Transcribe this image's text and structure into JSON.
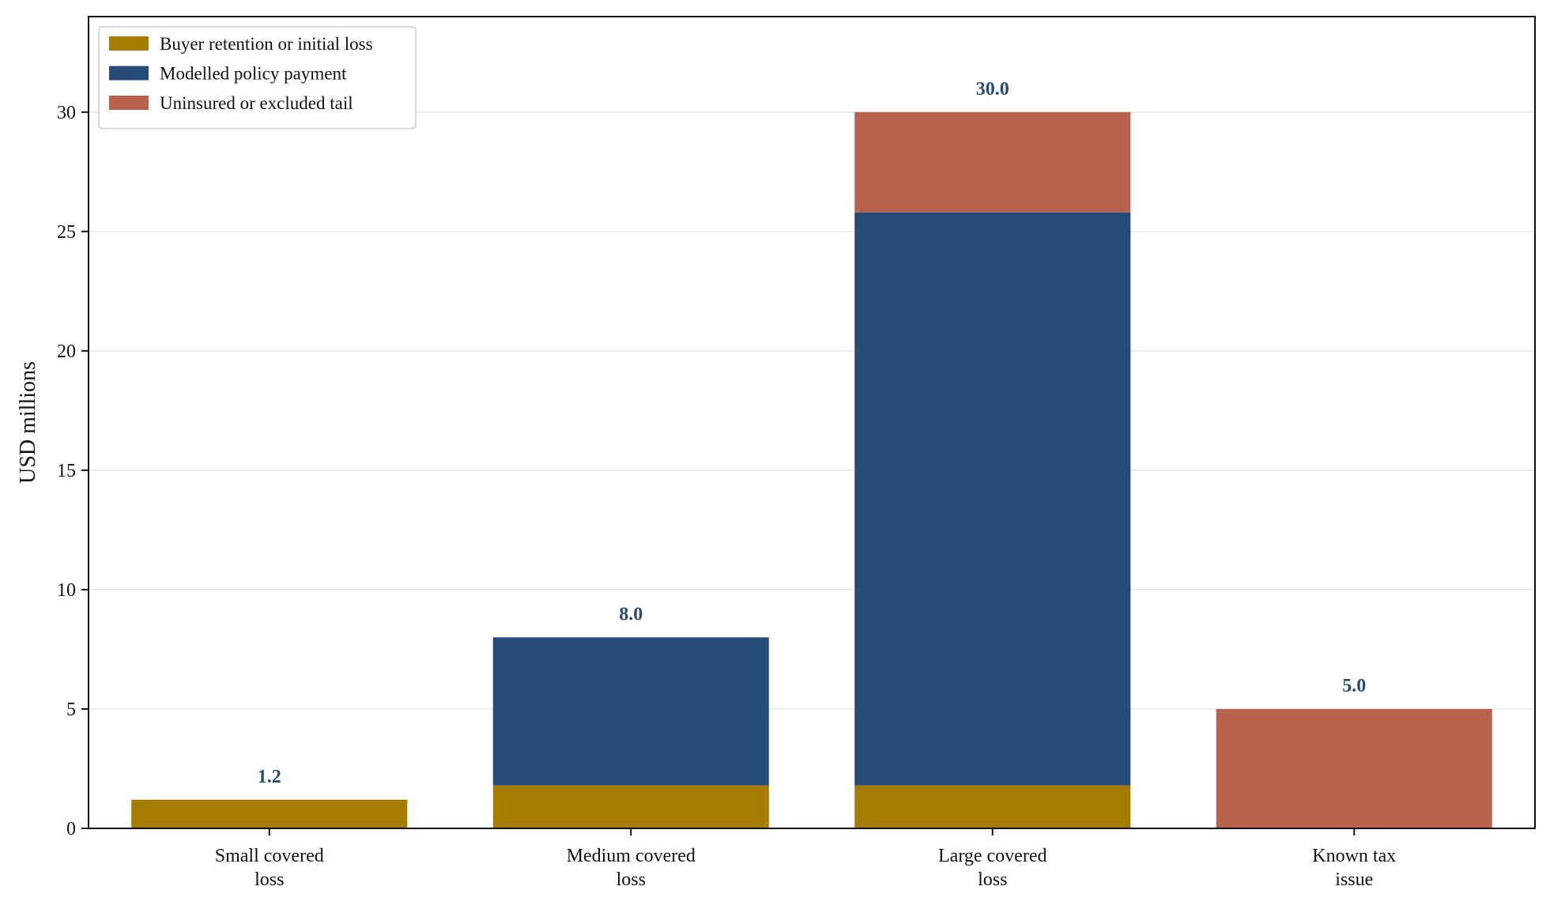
{
  "chart_data": {
    "type": "bar",
    "stacked": true,
    "title": "",
    "xlabel": "",
    "ylabel": "USD millions",
    "ylim": [
      0,
      34
    ],
    "yticks": [
      0,
      5,
      10,
      15,
      20,
      25,
      30
    ],
    "grid": "horizontal",
    "legend_position": "top-left",
    "categories": [
      [
        "Small covered",
        "loss"
      ],
      [
        "Medium covered",
        "loss"
      ],
      [
        "Large covered",
        "loss"
      ],
      [
        "Known tax",
        "issue"
      ]
    ],
    "series": [
      {
        "name": "Buyer retention or initial loss",
        "color": "#a67c00",
        "values": [
          1.2,
          1.8,
          1.8,
          0
        ]
      },
      {
        "name": "Modelled policy payment",
        "color": "#254b76",
        "values": [
          0,
          6.2,
          24.0,
          0
        ]
      },
      {
        "name": "Uninsured or excluded tail",
        "color": "#b8614d",
        "values": [
          0,
          0,
          4.2,
          5.0
        ]
      }
    ],
    "totals": [
      "1.2",
      "8.0",
      "30.0",
      "5.0"
    ],
    "total_label_color": "#254b76"
  }
}
